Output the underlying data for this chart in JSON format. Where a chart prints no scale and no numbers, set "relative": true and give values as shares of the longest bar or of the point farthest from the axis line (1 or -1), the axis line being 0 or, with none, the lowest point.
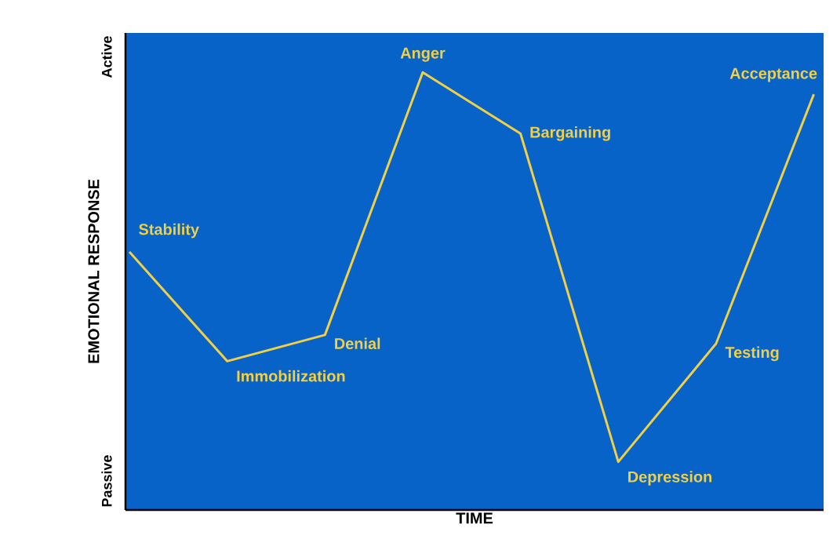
{
  "chart_data": {
    "type": "line",
    "relative": true,
    "xlabel": "TIME",
    "ylabel": "EMOTIONAL RESPONSE",
    "categories": [
      null,
      null,
      null,
      null,
      null,
      null,
      null,
      null
    ],
    "series": [
      {
        "color": "#f2d045",
        "values": [
          0.59,
          0.34,
          0.4,
          1,
          0.86,
          0.11,
          0.38,
          0.95
        ]
      }
    ],
    "annotations": [
      "Active",
      "Passive",
      "Stability",
      "Immobilization",
      "Denial",
      "Anger",
      "Bargaining",
      "Depression",
      "Testing",
      "Acceptance"
    ],
    "marker": "none",
    "line_style": "solid"
  }
}
